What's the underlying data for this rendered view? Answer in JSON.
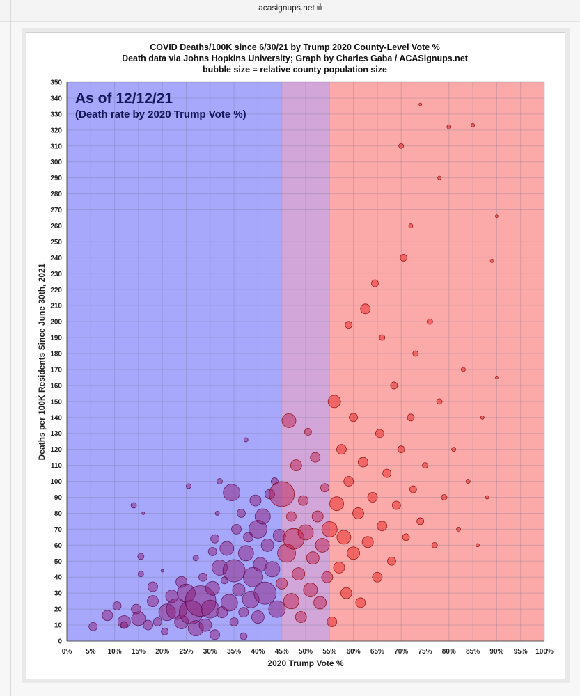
{
  "browser": {
    "url": "acasignups.net"
  },
  "chart_data": {
    "type": "scatter",
    "title": "COVID Deaths/100K since 6/30/21 by Trump 2020 County-Level Vote %",
    "subtitle": "Death data via Johns Hopkins University; Graph by Charles Gaba / ACASignups.net",
    "subtitle2": "bubble size = relative county population size",
    "annotation_date": "As of 12/12/21",
    "annotation_sub": "(Death rate by 2020 Trump Vote %)",
    "xlabel": "2020 Trump Vote %",
    "ylabel": "Deaths per 100K Residents Since June 30th, 2021",
    "xlim": [
      0,
      100
    ],
    "ylim": [
      0,
      350
    ],
    "x_ticks": [
      "0%",
      "5%",
      "10%",
      "15%",
      "20%",
      "25%",
      "30%",
      "35%",
      "40%",
      "45%",
      "50%",
      "55%",
      "60%",
      "65%",
      "70%",
      "75%",
      "80%",
      "85%",
      "90%",
      "95%",
      "100%"
    ],
    "y_ticks": [
      0,
      10,
      20,
      30,
      40,
      50,
      60,
      70,
      80,
      90,
      100,
      110,
      120,
      130,
      140,
      150,
      160,
      170,
      180,
      190,
      200,
      210,
      220,
      230,
      240,
      250,
      260,
      270,
      280,
      290,
      300,
      310,
      320,
      330,
      340,
      350
    ],
    "grid": true,
    "bands": [
      {
        "from": 0,
        "to": 45,
        "color": "#a7a7fb"
      },
      {
        "from": 45,
        "to": 55,
        "color": "#d2a6d9"
      },
      {
        "from": 55,
        "to": 100,
        "color": "#fbaaa9"
      }
    ],
    "series": [
      {
        "name": "",
        "points": [
          {
            "x": 5.5,
            "y": 9,
            "size": 12
          },
          {
            "x": 8.5,
            "y": 16,
            "size": 15
          },
          {
            "x": 10.5,
            "y": 22,
            "size": 12
          },
          {
            "x": 12,
            "y": 12,
            "size": 18
          },
          {
            "x": 12,
            "y": 10,
            "size": 10
          },
          {
            "x": 14.5,
            "y": 20,
            "size": 14
          },
          {
            "x": 15,
            "y": 14,
            "size": 20
          },
          {
            "x": 15.5,
            "y": 42,
            "size": 8
          },
          {
            "x": 15.5,
            "y": 53,
            "size": 9
          },
          {
            "x": 14,
            "y": 85,
            "size": 8
          },
          {
            "x": 16,
            "y": 80,
            "size": 4
          },
          {
            "x": 17,
            "y": 10,
            "size": 14
          },
          {
            "x": 18,
            "y": 25,
            "size": 16
          },
          {
            "x": 18,
            "y": 34,
            "size": 14
          },
          {
            "x": 19,
            "y": 12,
            "size": 12
          },
          {
            "x": 20,
            "y": 44,
            "size": 4
          },
          {
            "x": 20.5,
            "y": 6,
            "size": 10
          },
          {
            "x": 21,
            "y": 18,
            "size": 24
          },
          {
            "x": 22,
            "y": 28,
            "size": 18
          },
          {
            "x": 23,
            "y": 20,
            "size": 30
          },
          {
            "x": 24,
            "y": 12,
            "size": 20
          },
          {
            "x": 24,
            "y": 37,
            "size": 16
          },
          {
            "x": 25,
            "y": 30,
            "size": 26
          },
          {
            "x": 25.5,
            "y": 97,
            "size": 7
          },
          {
            "x": 26,
            "y": 18,
            "size": 34
          },
          {
            "x": 27,
            "y": 52,
            "size": 8
          },
          {
            "x": 27,
            "y": 8,
            "size": 22
          },
          {
            "x": 28,
            "y": 25,
            "size": 44
          },
          {
            "x": 28.5,
            "y": 40,
            "size": 12
          },
          {
            "x": 29,
            "y": 10,
            "size": 18
          },
          {
            "x": 30,
            "y": 20,
            "size": 26
          },
          {
            "x": 30.5,
            "y": 33,
            "size": 20
          },
          {
            "x": 30.5,
            "y": 56,
            "size": 12
          },
          {
            "x": 31,
            "y": 4,
            "size": 14
          },
          {
            "x": 31,
            "y": 64,
            "size": 12
          },
          {
            "x": 31.5,
            "y": 80,
            "size": 6
          },
          {
            "x": 32,
            "y": 100,
            "size": 8
          },
          {
            "x": 32,
            "y": 46,
            "size": 22
          },
          {
            "x": 32.5,
            "y": 18,
            "size": 16
          },
          {
            "x": 33,
            "y": 38,
            "size": 10
          },
          {
            "x": 33.5,
            "y": 58,
            "size": 20
          },
          {
            "x": 34,
            "y": 24,
            "size": 24
          },
          {
            "x": 34.5,
            "y": 93,
            "size": 24
          },
          {
            "x": 35,
            "y": 12,
            "size": 12
          },
          {
            "x": 35,
            "y": 44,
            "size": 32
          },
          {
            "x": 35.5,
            "y": 70,
            "size": 14
          },
          {
            "x": 36,
            "y": 32,
            "size": 18
          },
          {
            "x": 36.5,
            "y": 80,
            "size": 12
          },
          {
            "x": 37,
            "y": 18,
            "size": 14
          },
          {
            "x": 37,
            "y": 3,
            "size": 10
          },
          {
            "x": 37.5,
            "y": 55,
            "size": 22
          },
          {
            "x": 37.5,
            "y": 126,
            "size": 6
          },
          {
            "x": 38,
            "y": 65,
            "size": 14
          },
          {
            "x": 38.5,
            "y": 26,
            "size": 24
          },
          {
            "x": 39,
            "y": 40,
            "size": 28
          },
          {
            "x": 39.5,
            "y": 88,
            "size": 16
          },
          {
            "x": 40,
            "y": 15,
            "size": 18
          },
          {
            "x": 40,
            "y": 70,
            "size": 26
          },
          {
            "x": 40.5,
            "y": 48,
            "size": 20
          },
          {
            "x": 41,
            "y": 78,
            "size": 22
          },
          {
            "x": 41.5,
            "y": 30,
            "size": 32
          },
          {
            "x": 42,
            "y": 60,
            "size": 18
          },
          {
            "x": 42.5,
            "y": 92,
            "size": 14
          },
          {
            "x": 43,
            "y": 45,
            "size": 22
          },
          {
            "x": 43.5,
            "y": 100,
            "size": 10
          },
          {
            "x": 44,
            "y": 20,
            "size": 24
          },
          {
            "x": 44.5,
            "y": 66,
            "size": 18
          },
          {
            "x": 45,
            "y": 92,
            "size": 36
          },
          {
            "x": 45,
            "y": 36,
            "size": 16
          },
          {
            "x": 46,
            "y": 55,
            "size": 26
          },
          {
            "x": 46.5,
            "y": 138,
            "size": 20
          },
          {
            "x": 47,
            "y": 25,
            "size": 22
          },
          {
            "x": 47,
            "y": 78,
            "size": 14
          },
          {
            "x": 47.5,
            "y": 64,
            "size": 30
          },
          {
            "x": 48,
            "y": 110,
            "size": 16
          },
          {
            "x": 48.5,
            "y": 42,
            "size": 18
          },
          {
            "x": 49,
            "y": 15,
            "size": 16
          },
          {
            "x": 49.5,
            "y": 88,
            "size": 14
          },
          {
            "x": 50,
            "y": 68,
            "size": 22
          },
          {
            "x": 50.5,
            "y": 131,
            "size": 10
          },
          {
            "x": 51,
            "y": 32,
            "size": 20
          },
          {
            "x": 51.5,
            "y": 52,
            "size": 18
          },
          {
            "x": 52,
            "y": 115,
            "size": 14
          },
          {
            "x": 52.5,
            "y": 78,
            "size": 16
          },
          {
            "x": 53,
            "y": 24,
            "size": 18
          },
          {
            "x": 53.5,
            "y": 60,
            "size": 20
          },
          {
            "x": 54,
            "y": 96,
            "size": 12
          },
          {
            "x": 54.5,
            "y": 40,
            "size": 16
          },
          {
            "x": 55,
            "y": 70,
            "size": 22
          },
          {
            "x": 55.5,
            "y": 12,
            "size": 14
          },
          {
            "x": 56,
            "y": 150,
            "size": 18
          },
          {
            "x": 56.5,
            "y": 86,
            "size": 20
          },
          {
            "x": 57,
            "y": 46,
            "size": 16
          },
          {
            "x": 57.5,
            "y": 120,
            "size": 14
          },
          {
            "x": 58,
            "y": 65,
            "size": 20
          },
          {
            "x": 58.5,
            "y": 30,
            "size": 16
          },
          {
            "x": 59,
            "y": 100,
            "size": 14
          },
          {
            "x": 60,
            "y": 140,
            "size": 12
          },
          {
            "x": 60,
            "y": 55,
            "size": 18
          },
          {
            "x": 61,
            "y": 80,
            "size": 16
          },
          {
            "x": 61.5,
            "y": 24,
            "size": 14
          },
          {
            "x": 62,
            "y": 112,
            "size": 14
          },
          {
            "x": 62.5,
            "y": 208,
            "size": 14
          },
          {
            "x": 63,
            "y": 62,
            "size": 16
          },
          {
            "x": 64,
            "y": 90,
            "size": 14
          },
          {
            "x": 64.5,
            "y": 224,
            "size": 10
          },
          {
            "x": 65,
            "y": 40,
            "size": 14
          },
          {
            "x": 65.5,
            "y": 130,
            "size": 12
          },
          {
            "x": 66,
            "y": 72,
            "size": 14
          },
          {
            "x": 67,
            "y": 105,
            "size": 12
          },
          {
            "x": 68,
            "y": 50,
            "size": 12
          },
          {
            "x": 68.5,
            "y": 160,
            "size": 10
          },
          {
            "x": 69,
            "y": 85,
            "size": 12
          },
          {
            "x": 70,
            "y": 120,
            "size": 10
          },
          {
            "x": 70.5,
            "y": 240,
            "size": 10
          },
          {
            "x": 71,
            "y": 65,
            "size": 10
          },
          {
            "x": 72,
            "y": 140,
            "size": 10
          },
          {
            "x": 72.5,
            "y": 95,
            "size": 10
          },
          {
            "x": 73,
            "y": 180,
            "size": 8
          },
          {
            "x": 74,
            "y": 75,
            "size": 10
          },
          {
            "x": 75,
            "y": 110,
            "size": 8
          },
          {
            "x": 76,
            "y": 200,
            "size": 8
          },
          {
            "x": 77,
            "y": 60,
            "size": 8
          },
          {
            "x": 78,
            "y": 150,
            "size": 8
          },
          {
            "x": 79,
            "y": 90,
            "size": 8
          },
          {
            "x": 80,
            "y": 322,
            "size": 6
          },
          {
            "x": 81,
            "y": 120,
            "size": 6
          },
          {
            "x": 82,
            "y": 70,
            "size": 6
          },
          {
            "x": 83,
            "y": 170,
            "size": 6
          },
          {
            "x": 84,
            "y": 100,
            "size": 6
          },
          {
            "x": 85,
            "y": 323,
            "size": 5
          },
          {
            "x": 86,
            "y": 60,
            "size": 5
          },
          {
            "x": 87,
            "y": 140,
            "size": 5
          },
          {
            "x": 88,
            "y": 90,
            "size": 5
          },
          {
            "x": 89,
            "y": 238,
            "size": 5
          },
          {
            "x": 90,
            "y": 266,
            "size": 4
          },
          {
            "x": 90,
            "y": 165,
            "size": 4
          },
          {
            "x": 70,
            "y": 310,
            "size": 7
          },
          {
            "x": 74,
            "y": 336,
            "size": 4
          },
          {
            "x": 78,
            "y": 290,
            "size": 5
          },
          {
            "x": 59,
            "y": 198,
            "size": 10
          },
          {
            "x": 66,
            "y": 190,
            "size": 8
          },
          {
            "x": 72,
            "y": 260,
            "size": 6
          }
        ]
      }
    ]
  }
}
